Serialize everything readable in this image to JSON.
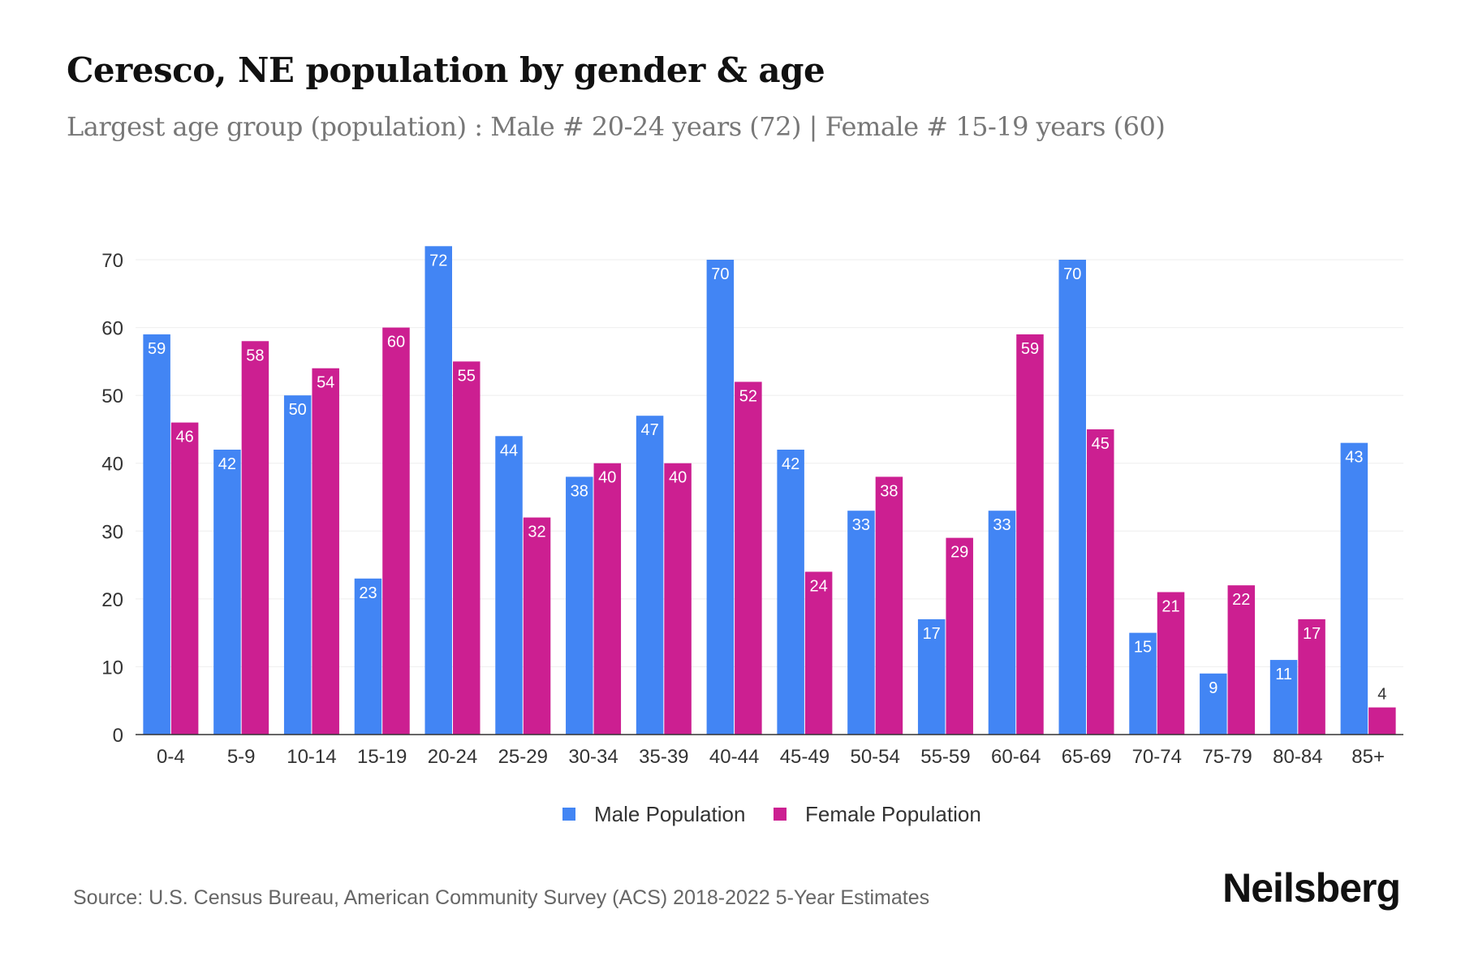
{
  "title": "Ceresco, NE population by gender & age",
  "subtitle": "Largest age group (population) : Male # 20-24 years (72) | Female # 15-19 years (60)",
  "source": "Source: U.S. Census Bureau, American Community Survey (ACS) 2018-2022 5-Year Estimates",
  "logo": "Neilsberg",
  "chart_data": {
    "type": "bar",
    "categories": [
      "0-4",
      "5-9",
      "10-14",
      "15-19",
      "20-24",
      "25-29",
      "30-34",
      "35-39",
      "40-44",
      "45-49",
      "50-54",
      "55-59",
      "60-64",
      "65-69",
      "70-74",
      "75-79",
      "80-84",
      "85+"
    ],
    "series": [
      {
        "name": "Male Population",
        "color": "#4285f4",
        "values": [
          59,
          42,
          50,
          23,
          72,
          44,
          38,
          47,
          70,
          42,
          33,
          17,
          33,
          70,
          15,
          9,
          11,
          43
        ]
      },
      {
        "name": "Female Population",
        "color": "#cc1f91",
        "values": [
          46,
          58,
          54,
          60,
          55,
          32,
          40,
          40,
          52,
          24,
          38,
          29,
          59,
          45,
          21,
          22,
          17,
          4
        ]
      }
    ],
    "ylim": [
      0,
      70
    ],
    "yticks": [
      0,
      10,
      20,
      30,
      40,
      50,
      60,
      70
    ],
    "grid": true,
    "legend": "bottom"
  }
}
